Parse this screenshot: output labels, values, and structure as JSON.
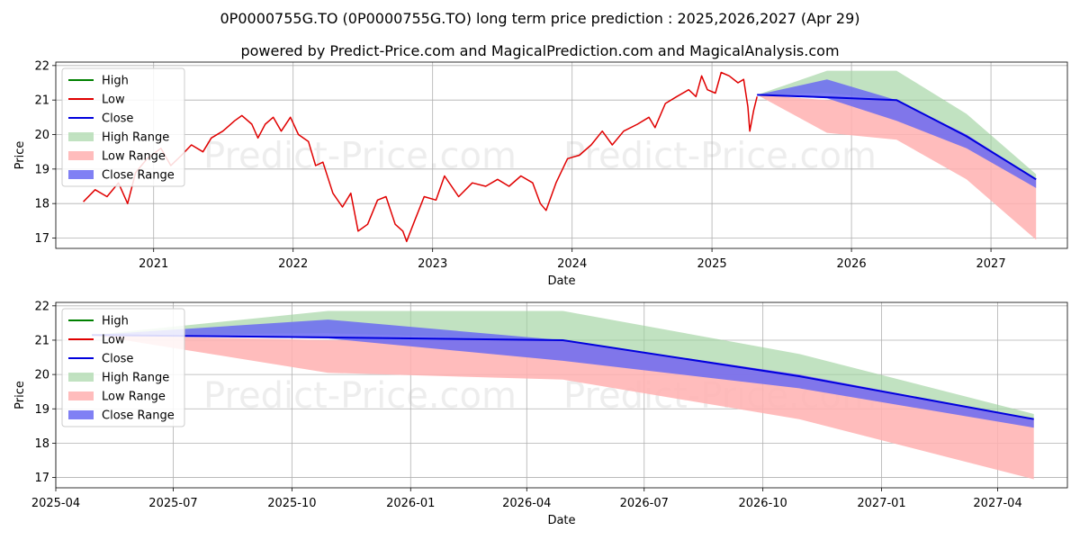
{
  "title": "0P0000755G.TO (0P0000755G.TO) long term price prediction : 2025,2026,2027 (Apr 29)",
  "subtitle": "powered by Predict-Price.com and MagicalPrediction.com and MagicalAnalysis.com",
  "watermark": "Predict-Price.com",
  "colors": {
    "high": "#008000",
    "low": "#e00000",
    "close": "#0000dd",
    "high_range": "#9fd39f",
    "low_range": "#ffb0b0",
    "close_range": "#6a6af2"
  },
  "legend": {
    "high": "High",
    "low": "Low",
    "close": "Close",
    "high_range": "High Range",
    "low_range": "Low Range",
    "close_range": "Close Range"
  },
  "chart_data": [
    {
      "type": "line",
      "xlabel": "Date",
      "ylabel": "Price",
      "xlim": [
        "2020-04-20",
        "2027-07-20"
      ],
      "ylim": [
        16.7,
        22.1
      ],
      "yticks": [
        17,
        18,
        19,
        20,
        21,
        22
      ],
      "xticks": [
        "2021",
        "2022",
        "2023",
        "2024",
        "2025",
        "2026",
        "2027"
      ],
      "grid": true,
      "legend_position": "upper-left",
      "history_low": [
        [
          "2020-07-01",
          18.05
        ],
        [
          "2020-08-01",
          18.4
        ],
        [
          "2020-09-01",
          18.2
        ],
        [
          "2020-10-01",
          18.6
        ],
        [
          "2020-10-25",
          18.0
        ],
        [
          "2020-11-15",
          18.9
        ],
        [
          "2020-12-15",
          19.3
        ],
        [
          "2021-01-20",
          19.6
        ],
        [
          "2021-02-15",
          19.1
        ],
        [
          "2021-03-15",
          19.4
        ],
        [
          "2021-04-10",
          19.7
        ],
        [
          "2021-05-10",
          19.5
        ],
        [
          "2021-06-01",
          19.9
        ],
        [
          "2021-07-01",
          20.1
        ],
        [
          "2021-08-01",
          20.4
        ],
        [
          "2021-08-20",
          20.55
        ],
        [
          "2021-09-15",
          20.3
        ],
        [
          "2021-10-01",
          19.9
        ],
        [
          "2021-10-20",
          20.3
        ],
        [
          "2021-11-10",
          20.5
        ],
        [
          "2021-12-01",
          20.1
        ],
        [
          "2021-12-25",
          20.5
        ],
        [
          "2022-01-15",
          20.0
        ],
        [
          "2022-02-10",
          19.8
        ],
        [
          "2022-03-01",
          19.1
        ],
        [
          "2022-03-20",
          19.2
        ],
        [
          "2022-04-15",
          18.3
        ],
        [
          "2022-05-10",
          17.9
        ],
        [
          "2022-06-01",
          18.3
        ],
        [
          "2022-06-20",
          17.2
        ],
        [
          "2022-07-15",
          17.4
        ],
        [
          "2022-08-10",
          18.1
        ],
        [
          "2022-09-01",
          18.2
        ],
        [
          "2022-09-25",
          17.4
        ],
        [
          "2022-10-15",
          17.2
        ],
        [
          "2022-10-25",
          16.9
        ],
        [
          "2022-11-15",
          17.5
        ],
        [
          "2022-12-10",
          18.2
        ],
        [
          "2023-01-10",
          18.1
        ],
        [
          "2023-02-01",
          18.8
        ],
        [
          "2023-03-10",
          18.2
        ],
        [
          "2023-04-15",
          18.6
        ],
        [
          "2023-05-20",
          18.5
        ],
        [
          "2023-06-20",
          18.7
        ],
        [
          "2023-07-20",
          18.5
        ],
        [
          "2023-08-20",
          18.8
        ],
        [
          "2023-09-20",
          18.6
        ],
        [
          "2023-10-10",
          18.0
        ],
        [
          "2023-10-25",
          17.8
        ],
        [
          "2023-11-20",
          18.6
        ],
        [
          "2023-12-20",
          19.3
        ],
        [
          "2024-01-20",
          19.4
        ],
        [
          "2024-02-20",
          19.7
        ],
        [
          "2024-03-20",
          20.1
        ],
        [
          "2024-04-15",
          19.7
        ],
        [
          "2024-05-15",
          20.1
        ],
        [
          "2024-06-20",
          20.3
        ],
        [
          "2024-07-20",
          20.5
        ],
        [
          "2024-08-05",
          20.2
        ],
        [
          "2024-09-01",
          20.9
        ],
        [
          "2024-10-01",
          21.1
        ],
        [
          "2024-11-01",
          21.3
        ],
        [
          "2024-11-20",
          21.1
        ],
        [
          "2024-12-05",
          21.7
        ],
        [
          "2024-12-20",
          21.3
        ],
        [
          "2025-01-10",
          21.2
        ],
        [
          "2025-01-25",
          21.8
        ],
        [
          "2025-02-15",
          21.7
        ],
        [
          "2025-03-10",
          21.5
        ],
        [
          "2025-03-25",
          21.6
        ],
        [
          "2025-04-05",
          20.8
        ],
        [
          "2025-04-10",
          20.1
        ],
        [
          "2025-04-20",
          20.7
        ],
        [
          "2025-04-29",
          21.1
        ]
      ]
    },
    {
      "type": "area",
      "xlabel": "Date",
      "ylabel": "Price",
      "xlim": [
        "2025-04-01",
        "2027-05-25"
      ],
      "ylim": [
        16.7,
        22.1
      ],
      "yticks": [
        17,
        18,
        19,
        20,
        21,
        22
      ],
      "xticks": [
        "2025-04",
        "2025-07",
        "2025-10",
        "2026-01",
        "2026-04",
        "2026-07",
        "2026-10",
        "2027-01",
        "2027-04"
      ],
      "grid": true,
      "legend_position": "upper-left",
      "forecast_dates": [
        "2025-04-29",
        "2025-10-29",
        "2026-04-29",
        "2026-10-29",
        "2027-04-29"
      ],
      "close": [
        21.15,
        21.08,
        21.0,
        19.95,
        18.7
      ],
      "high_range": [
        [
          21.15,
          21.15
        ],
        [
          21.2,
          21.85
        ],
        [
          21.0,
          21.85
        ],
        [
          20.0,
          20.6
        ],
        [
          18.7,
          18.85
        ]
      ],
      "low_range": [
        [
          21.15,
          21.15
        ],
        [
          20.05,
          21.0
        ],
        [
          19.85,
          21.0
        ],
        [
          18.7,
          20.0
        ],
        [
          16.95,
          18.7
        ]
      ],
      "close_range": [
        [
          21.15,
          21.15
        ],
        [
          21.05,
          21.6
        ],
        [
          20.4,
          21.0
        ],
        [
          19.6,
          20.0
        ],
        [
          18.45,
          18.7
        ]
      ]
    }
  ]
}
